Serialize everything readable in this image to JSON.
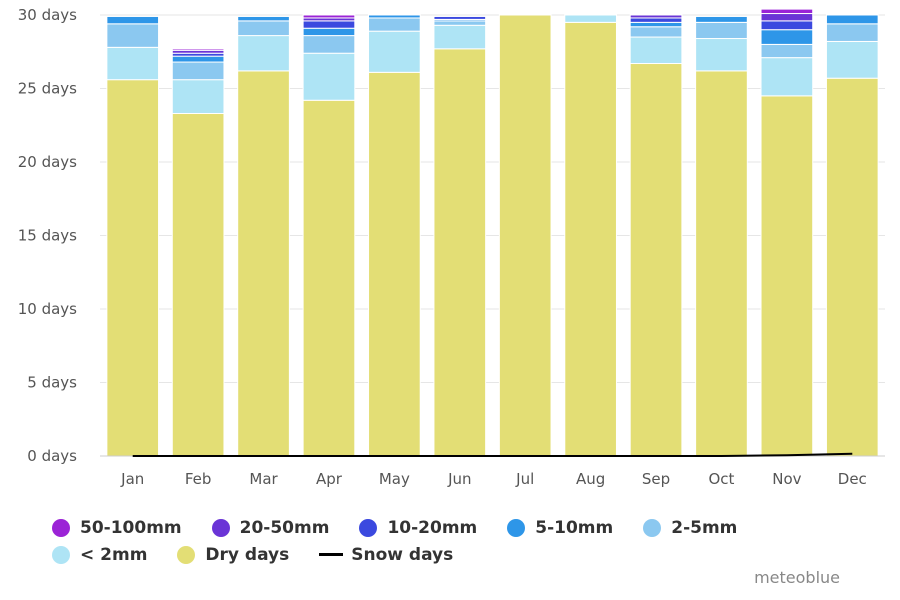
{
  "chart_data": {
    "type": "bar",
    "stacked": true,
    "categories": [
      "Jan",
      "Feb",
      "Mar",
      "Apr",
      "May",
      "Jun",
      "Jul",
      "Aug",
      "Sep",
      "Oct",
      "Nov",
      "Dec"
    ],
    "y_ticks": [
      "0 days",
      "5 days",
      "10 days",
      "15 days",
      "20 days",
      "25 days",
      "30 days"
    ],
    "ylim": [
      0,
      30
    ],
    "grid": true,
    "legend_position": "bottom",
    "series": [
      {
        "name": "Dry days",
        "color": "#e3de75",
        "values": [
          25.6,
          23.3,
          26.2,
          24.2,
          26.1,
          27.7,
          30.0,
          29.5,
          26.7,
          26.2,
          24.5,
          25.7
        ]
      },
      {
        "name": "< 2mm",
        "color": "#aee4f5",
        "values": [
          2.2,
          2.3,
          2.4,
          3.2,
          2.8,
          1.6,
          0.0,
          0.5,
          1.8,
          2.2,
          2.6,
          2.5
        ]
      },
      {
        "name": "2-5mm",
        "color": "#8bc8f0",
        "values": [
          1.6,
          1.2,
          1.0,
          1.2,
          0.9,
          0.3,
          0.0,
          0.0,
          0.7,
          1.1,
          0.9,
          1.2
        ]
      },
      {
        "name": "5-10mm",
        "color": "#2e96e8",
        "values": [
          0.5,
          0.4,
          0.3,
          0.5,
          0.2,
          0.1,
          0.0,
          0.0,
          0.3,
          0.4,
          1.0,
          0.6
        ]
      },
      {
        "name": "10-20mm",
        "color": "#3b49df",
        "values": [
          0.0,
          0.2,
          0.0,
          0.5,
          0.0,
          0.2,
          0.0,
          0.0,
          0.3,
          0.0,
          0.6,
          0.0
        ]
      },
      {
        "name": "20-50mm",
        "color": "#6a34d6",
        "values": [
          0.0,
          0.2,
          0.0,
          0.2,
          0.0,
          0.0,
          0.0,
          0.0,
          0.2,
          0.0,
          0.5,
          0.0
        ]
      },
      {
        "name": "50-100mm",
        "color": "#9b23d6",
        "values": [
          0.0,
          0.1,
          0.0,
          0.2,
          0.0,
          0.0,
          0.0,
          0.0,
          0.0,
          0.0,
          0.3,
          0.0
        ]
      }
    ],
    "line_series": [
      {
        "name": "Snow days",
        "color": "#000000",
        "values": [
          0,
          0,
          0,
          0,
          0,
          0,
          0,
          0,
          0,
          0,
          0.05,
          0.15
        ]
      }
    ]
  },
  "legend": {
    "row1": [
      {
        "label": "50-100mm",
        "color": "#9b23d6"
      },
      {
        "label": "20-50mm",
        "color": "#6a34d6"
      },
      {
        "label": "10-20mm",
        "color": "#3b49df"
      },
      {
        "label": "5-10mm",
        "color": "#2e96e8"
      },
      {
        "label": "2-5mm",
        "color": "#8bc8f0"
      }
    ],
    "row2": [
      {
        "label": "< 2mm",
        "color": "#aee4f5",
        "kind": "dot"
      },
      {
        "label": "Dry days",
        "color": "#e3de75",
        "kind": "dot"
      },
      {
        "label": "Snow days",
        "color": "#000000",
        "kind": "line"
      }
    ]
  },
  "credit": "meteoblue"
}
